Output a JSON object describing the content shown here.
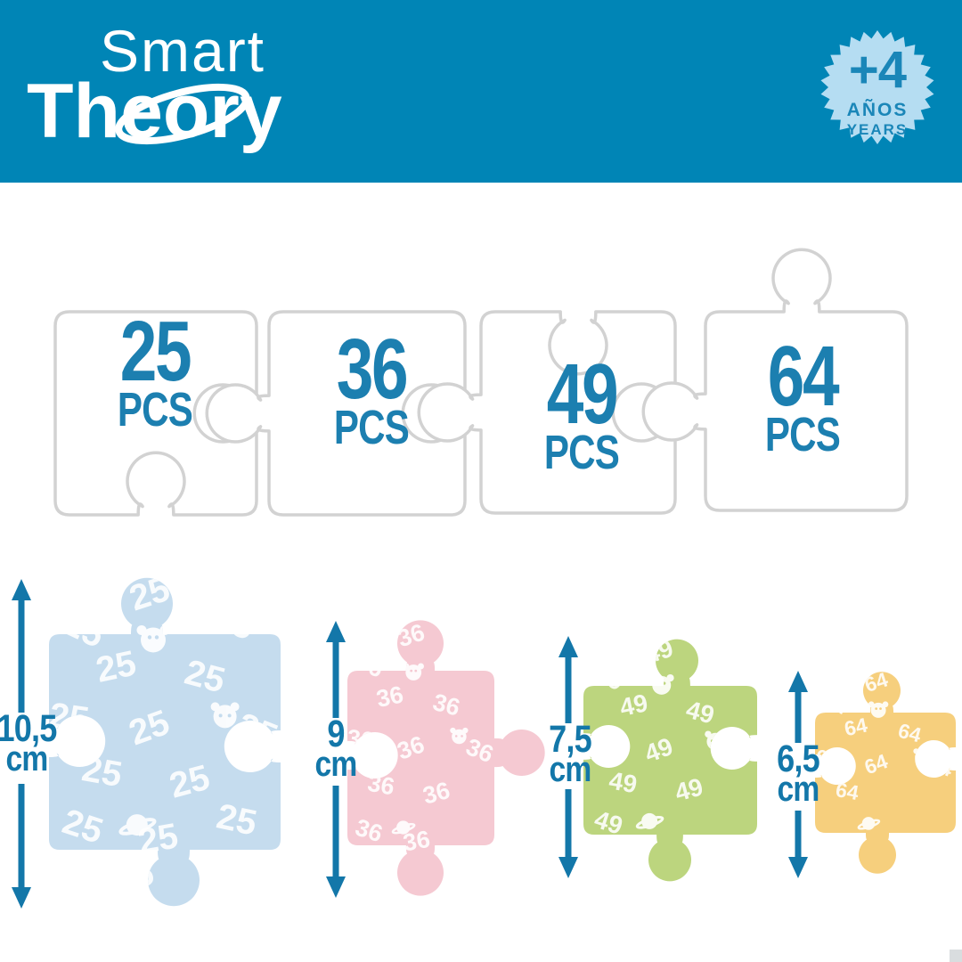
{
  "brand": {
    "word1": "Smart",
    "word2": "Theory"
  },
  "age_badge": {
    "number": "+4",
    "line_es": "AÑOS",
    "line_en": "YEARS"
  },
  "colors": {
    "header_bg": "#0085b6",
    "logo_text": "#ffffff",
    "badge_bg": "#b5ddf2",
    "badge_text": "#1a86b8",
    "pcs_text": "#1c7fb0",
    "outline_stroke": "#d2d2d2",
    "measure": "#1377a9"
  },
  "outline_row": {
    "unit_label": "PCS",
    "pieces": [
      {
        "count": "25"
      },
      {
        "count": "36"
      },
      {
        "count": "49"
      },
      {
        "count": "64"
      }
    ]
  },
  "size_row": {
    "unit_label": "cm",
    "pieces": [
      {
        "count": "25",
        "size": "10,5",
        "color": "#c5dcee"
      },
      {
        "count": "36",
        "size": "9",
        "color": "#f5c9d2"
      },
      {
        "count": "49",
        "size": "7,5",
        "color": "#bcd57e"
      },
      {
        "count": "64",
        "size": "6,5",
        "color": "#f6cf7d"
      }
    ]
  }
}
